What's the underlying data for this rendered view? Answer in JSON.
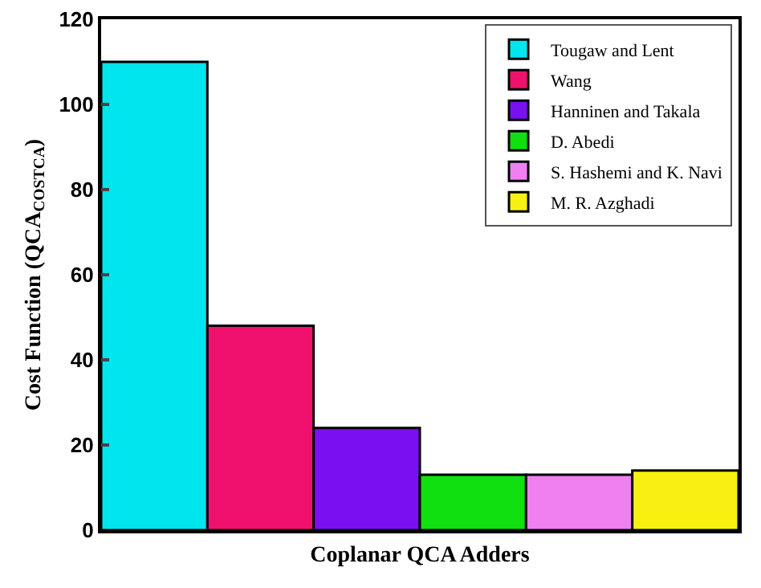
{
  "chart_data": {
    "type": "bar",
    "xlabel": "Coplanar QCA Adders",
    "ylabel": "Cost Function (QCA$_{COSTCA}$)",
    "categories": [
      null,
      null,
      null,
      null,
      null,
      null
    ],
    "series": [
      {
        "name": "Tougaw and Lent",
        "color": "#00e5ee",
        "values": [
          110,
          null,
          null,
          null,
          null,
          null
        ]
      },
      {
        "name": "Wang",
        "color": "#f0106e",
        "values": [
          null,
          48,
          null,
          null,
          null,
          null
        ]
      },
      {
        "name": "Hanninen and Takala",
        "color": "#7a10f0",
        "values": [
          null,
          null,
          24,
          null,
          null,
          null
        ]
      },
      {
        "name": "D. Abedi",
        "color": "#10e010",
        "values": [
          null,
          null,
          null,
          13,
          null,
          null
        ]
      },
      {
        "name": "S. Hashemi and K. Navi",
        "color": "#f080f0",
        "values": [
          null,
          null,
          null,
          null,
          13,
          null
        ]
      },
      {
        "name": "M. R. Azghadi",
        "color": "#f8f010",
        "values": [
          null,
          null,
          null,
          null,
          null,
          14
        ]
      }
    ],
    "ylim": [
      0,
      120
    ],
    "yticks": [
      0,
      20,
      40,
      60,
      80,
      100,
      120
    ],
    "grid": false,
    "legend": "top right"
  }
}
